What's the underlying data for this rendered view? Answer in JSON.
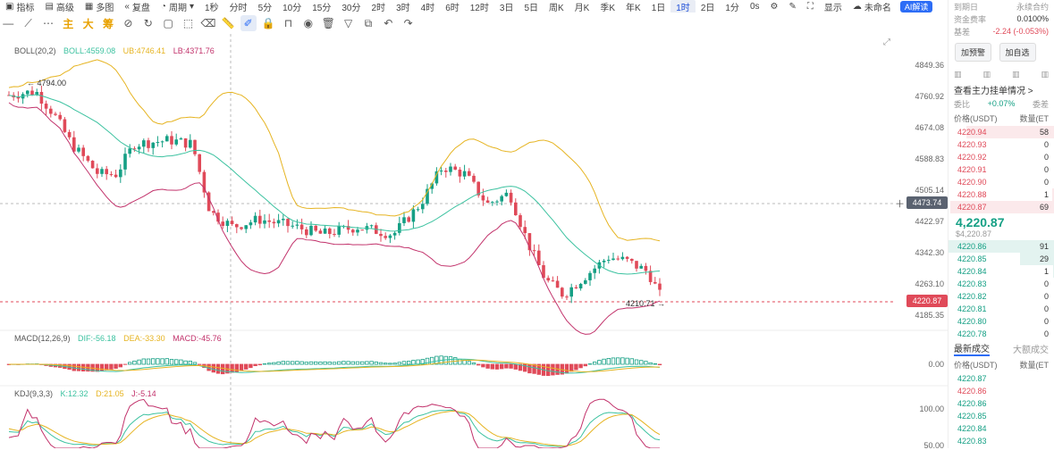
{
  "topbar": {
    "items": [
      {
        "label": "指标",
        "icon": "chart-icon"
      },
      {
        "label": "高级",
        "icon": "grid-icon"
      },
      {
        "label": "多图",
        "icon": "multi-icon"
      },
      {
        "label": "复盘",
        "icon": "replay-icon"
      },
      {
        "label": "周期",
        "icon": "period-icon"
      }
    ],
    "periods": [
      "1秒",
      "分时",
      "5分",
      "10分",
      "15分",
      "30分",
      "2时",
      "3时",
      "4时",
      "6时",
      "12时",
      "3日",
      "5日",
      "周K",
      "月K",
      "季K",
      "年K",
      "1日",
      "1时",
      "2日",
      "1分"
    ],
    "active_period": "1时",
    "right": {
      "seconds": "0s",
      "display": "显示",
      "unnamed": "未命名",
      "ai": "AI解读"
    }
  },
  "tools": {
    "main": "主",
    "big": "大",
    "chip": "筹"
  },
  "indicators": {
    "boll": {
      "name": "BOLL(20,2)",
      "boll": "BOLL:4559.08",
      "ub": "UB:4746.41",
      "lb": "LB:4371.76"
    },
    "macd": {
      "name": "MACD(12,26,9)",
      "dif": "DIF:-56.18",
      "dea": "DEA:-33.30",
      "macd": "MACD:-45.76"
    },
    "kdj": {
      "name": "KDJ(9,3,3)",
      "k": "K:12.32",
      "d": "D:21.05",
      "j": "J:-5.14"
    }
  },
  "price_axis": [
    "4849.36",
    "4760.92",
    "4674.08",
    "4588.83",
    "4505.14",
    "4422.97",
    "4342.30",
    "4263.10",
    "4185.35"
  ],
  "macd_axis": "0.00",
  "kdj_axis": [
    "100.00",
    "50.00"
  ],
  "markers": {
    "high": "4794.00",
    "low": "4210.71",
    "crosshair": "4473.74",
    "last": "4220.87"
  },
  "colors": {
    "up": "#16a085",
    "down": "#e04a59",
    "boll_mid": "#3cc2a0",
    "boll_ub": "#e6b422",
    "boll_lb": "#c2326b"
  },
  "right_panel": {
    "line1": "到期日",
    "line1_val": "永续合约",
    "funding_label": "资金费率",
    "funding": "0.0100%",
    "basis_label": "基差",
    "basis": "-2.24 (-0.053%)",
    "buttons": [
      "加预警",
      "加自选"
    ],
    "depth_link": "查看主力挂单情况 >",
    "ratio_label": "委比",
    "ratio": "+0.07%",
    "ratio_right": "委差",
    "ob_headers": [
      "价格(USDT)",
      "数量(ET"
    ],
    "asks": [
      {
        "p": "4220.94",
        "q": "58"
      },
      {
        "p": "4220.93",
        "q": "0"
      },
      {
        "p": "4220.92",
        "q": "0"
      },
      {
        "p": "4220.91",
        "q": "0"
      },
      {
        "p": "4220.90",
        "q": "0"
      },
      {
        "p": "4220.88",
        "q": "1"
      },
      {
        "p": "4220.87",
        "q": "69"
      }
    ],
    "last_price": "4,220.87",
    "last_usd": "$4,220.87",
    "bids": [
      {
        "p": "4220.86",
        "q": "91"
      },
      {
        "p": "4220.85",
        "q": "29"
      },
      {
        "p": "4220.84",
        "q": "1"
      },
      {
        "p": "4220.83",
        "q": "0"
      },
      {
        "p": "4220.82",
        "q": "0"
      },
      {
        "p": "4220.81",
        "q": "0"
      },
      {
        "p": "4220.80",
        "q": "0"
      },
      {
        "p": "4220.78",
        "q": "0"
      }
    ],
    "trade_tabs": [
      "最新成交",
      "大额成交"
    ],
    "trade_headers": [
      "价格(USDT)",
      "数量(ET"
    ],
    "trades": [
      {
        "p": "4220.87",
        "side": "buy"
      },
      {
        "p": "4220.86",
        "side": "sell"
      },
      {
        "p": "4220.86",
        "side": "buy"
      },
      {
        "p": "4220.85",
        "side": "buy"
      },
      {
        "p": "4220.84",
        "side": "buy"
      },
      {
        "p": "4220.83",
        "side": "buy"
      }
    ]
  }
}
